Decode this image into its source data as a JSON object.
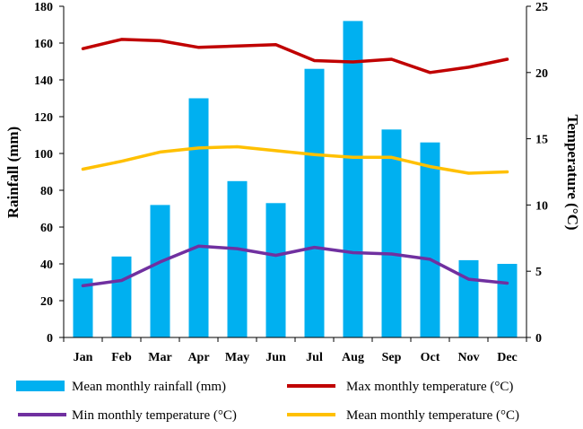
{
  "chart_data": {
    "type": "bar+line",
    "categories": [
      "Jan",
      "Feb",
      "Mar",
      "Apr",
      "May",
      "Jun",
      "Jul",
      "Aug",
      "Sep",
      "Oct",
      "Nov",
      "Dec"
    ],
    "y_left": {
      "label": "Rainfall (mm)",
      "range": [
        0,
        180
      ],
      "ticks": [
        0,
        20,
        40,
        60,
        80,
        100,
        120,
        140,
        160,
        180
      ]
    },
    "y_right": {
      "label": "Temperature (°C)",
      "range": [
        0,
        25
      ],
      "ticks": [
        0,
        5,
        10,
        15,
        20,
        25
      ]
    },
    "series": [
      {
        "name": "Mean monthly rainfall (mm)",
        "type": "bar",
        "axis": "left",
        "color": "#00B0F0",
        "values": [
          32,
          44,
          72,
          130,
          85,
          73,
          146,
          172,
          113,
          106,
          42,
          40
        ]
      },
      {
        "name": "Max monthly temperature (°C)",
        "type": "line",
        "axis": "right",
        "color": "#C00000",
        "values": [
          21.8,
          22.5,
          22.4,
          21.9,
          22.0,
          22.1,
          20.9,
          20.8,
          21.0,
          20.0,
          20.4,
          21.0
        ]
      },
      {
        "name": "Min monthly temperature (°C)",
        "type": "line",
        "axis": "right",
        "color": "#7030A0",
        "values": [
          3.9,
          4.3,
          5.7,
          6.9,
          6.7,
          6.2,
          6.8,
          6.4,
          6.3,
          5.9,
          4.4,
          4.1
        ]
      },
      {
        "name": "Mean monthly temperature (°C)",
        "type": "line",
        "axis": "right",
        "color": "#FFC000",
        "values": [
          12.7,
          13.3,
          14.0,
          14.3,
          14.4,
          14.1,
          13.8,
          13.6,
          13.6,
          12.9,
          12.4,
          12.5
        ]
      }
    ],
    "legend": [
      {
        "label": "Mean monthly rainfall (mm)",
        "series": 0
      },
      {
        "label": "Max monthly temperature (°C)",
        "series": 1
      },
      {
        "label": "Min monthly temperature (°C)",
        "series": 2
      },
      {
        "label": "Mean monthly temperature (°C)",
        "series": 3
      }
    ],
    "legend_position": "bottom"
  }
}
